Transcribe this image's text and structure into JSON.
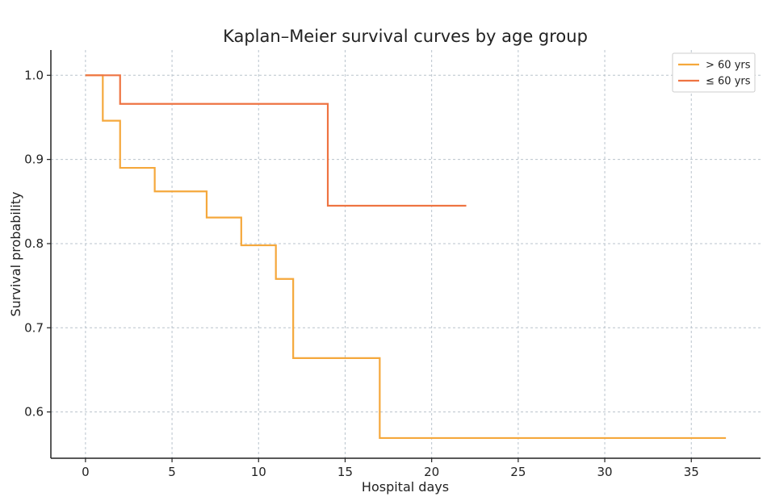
{
  "chart_data": {
    "type": "line",
    "step": true,
    "title": "Kaplan–Meier survival curves by age group",
    "xlabel": "Hospital days",
    "ylabel": "Survival probability",
    "xlim": [
      -2,
      39
    ],
    "ylim": [
      0.545,
      1.03
    ],
    "xticks": [
      0,
      5,
      10,
      15,
      20,
      25,
      30,
      35
    ],
    "yticks": [
      0.6,
      0.7,
      0.8,
      0.9,
      1.0
    ],
    "ytick_format": 1,
    "grid": true,
    "legend_position": "top-right",
    "series": [
      {
        "name": "> 60 yrs",
        "color": "#f5a83c",
        "x": [
          0,
          1,
          2,
          4,
          7,
          9,
          11,
          12,
          17,
          37
        ],
        "y": [
          1.0,
          0.946,
          0.89,
          0.862,
          0.831,
          0.798,
          0.758,
          0.664,
          0.569,
          0.569
        ]
      },
      {
        "name": "≤ 60 yrs",
        "color": "#ee7442",
        "x": [
          0,
          2,
          14,
          22
        ],
        "y": [
          1.0,
          0.966,
          0.845,
          0.845
        ]
      }
    ]
  }
}
